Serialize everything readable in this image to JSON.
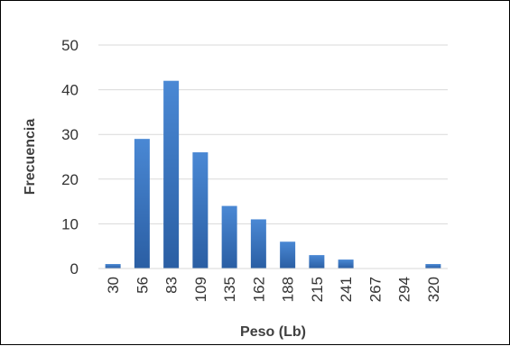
{
  "chart_data": {
    "type": "bar",
    "categories": [
      "30",
      "56",
      "83",
      "109",
      "135",
      "162",
      "188",
      "215",
      "241",
      "267",
      "294",
      "320"
    ],
    "values": [
      1,
      29,
      42,
      26,
      14,
      11,
      6,
      3,
      2,
      0,
      0,
      1
    ],
    "xlabel": "Peso (Lb)",
    "ylabel": "Frecuencia",
    "ylim": [
      0,
      50
    ],
    "yticks": [
      "0",
      "10",
      "20",
      "30",
      "40",
      "50"
    ],
    "grid": true,
    "legend": "none",
    "bar_color": "#3f7cc9",
    "bar_color_dark": "#2a5ea3",
    "grid_color": "#d9d9d9"
  }
}
